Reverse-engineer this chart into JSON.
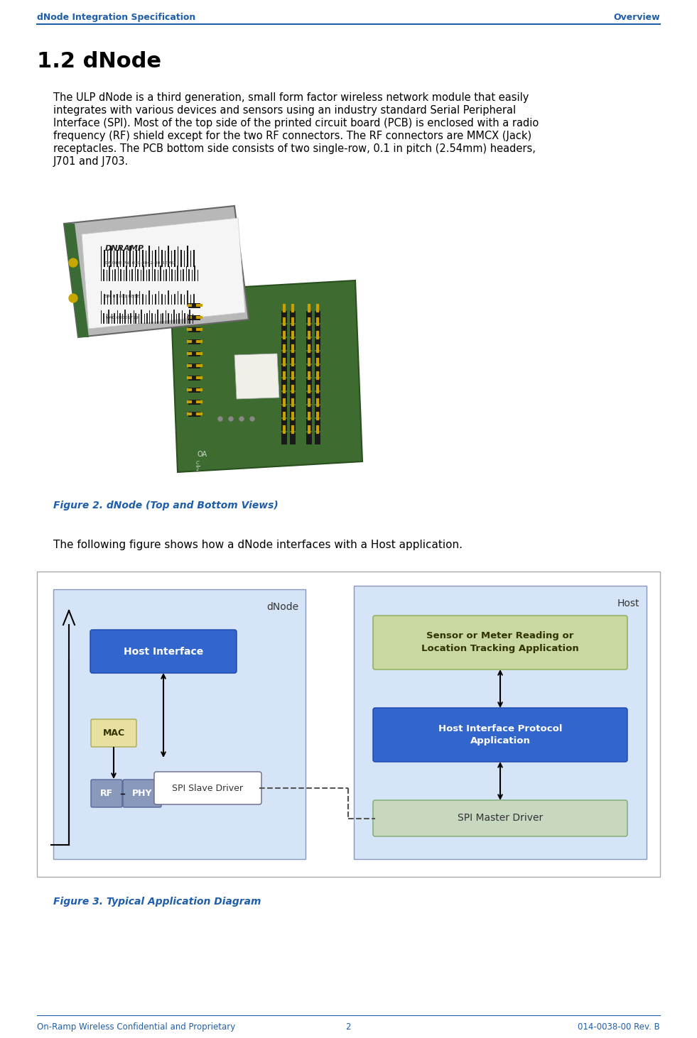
{
  "header_left": "dNode Integration Specification",
  "header_right": "Overview",
  "header_color": "#1F5EAB",
  "section_title": "1.2 dNode",
  "body_text_lines": [
    "The ULP dNode is a third generation, small form factor wireless network module that easily",
    "integrates with various devices and sensors using an industry standard Serial Peripheral",
    "Interface (SPI). Most of the top side of the printed circuit board (PCB) is enclosed with a radio",
    "frequency (RF) shield except for the two RF connectors. The RF connectors are MMCX (Jack)",
    "receptacles. The PCB bottom side consists of two single-row, 0.1 in pitch (2.54mm) headers,",
    "J701 and J703."
  ],
  "figure2_caption": "Figure 2. dNode (Top and Bottom Views)",
  "figure3_intro": "The following figure shows how a dNode interfaces with a Host application.",
  "figure3_caption": "Figure 3. Typical Application Diagram",
  "footer_left": "On-Ramp Wireless Confidential and Proprietary",
  "footer_center": "2",
  "footer_right": "014-0038-00 Rev. B",
  "footer_color": "#1F5EAB",
  "bg_color": "#FFFFFF",
  "text_color": "#000000",
  "caption_color": "#1F5EAB",
  "blue_box_color": "#3366CC",
  "light_blue_bg": "#D6E4F7",
  "host_bg_color": "#D6E4F7",
  "green_pcb_color": "#4A7A3A",
  "silver_pcb_color": "#AAAAAA",
  "mac_box_color": "#E8E0A0",
  "sensor_box_color": "#C8D8A0",
  "spi_master_box_color": "#C8D8C0",
  "body_font_size": 10.5,
  "header_font_size": 9,
  "footer_font_size": 8.5,
  "section_font_size": 22,
  "caption_font_size": 10,
  "intro_font_size": 11
}
